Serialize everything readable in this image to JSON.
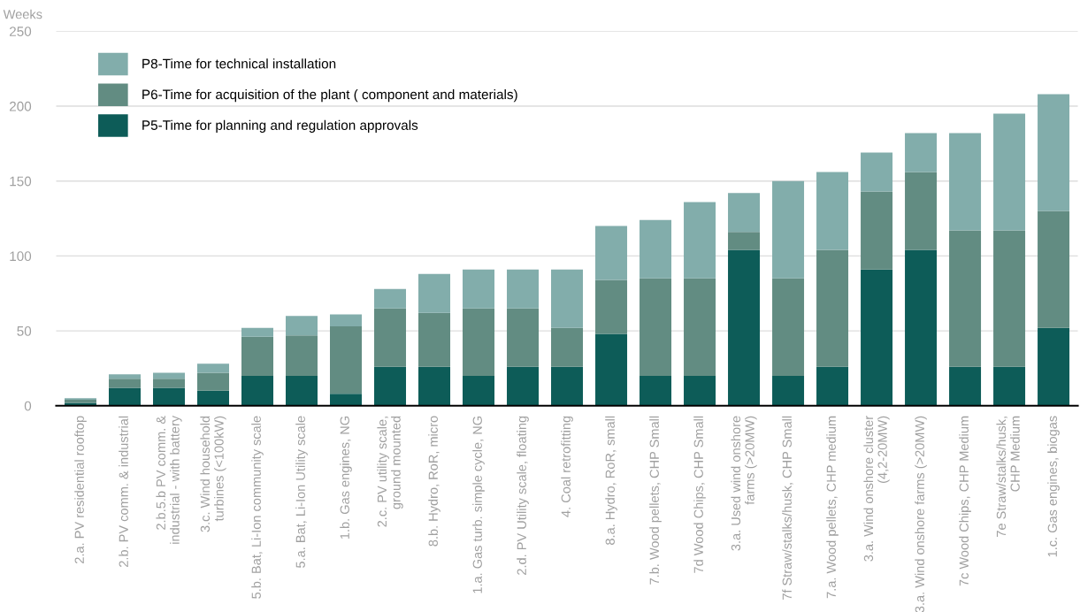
{
  "chart_data": {
    "type": "bar",
    "stacked": true,
    "ylabel": "Weeks",
    "categories": [
      "2.a. PV residential rooftop",
      "2.b. PV comm. & industrial",
      "2.b.5.b PV comm. &\nindustrial - with battery",
      "3.c. Wind household\nturbines (<100kW)",
      "5.b. Bat, Li-Ion community scale",
      "5.a. Bat, Li-Ion Utility scale",
      "1.b. Gas engines, NG",
      "2.c. PV utility scale,\nground mounted",
      "8.b. Hydro, RoR, micro",
      "1.a. Gas turb. simple cycle, NG",
      "2.d. PV Utility scale, floating",
      "4. Coal retrofitting",
      "8.a. Hydro, RoR, small",
      "7.b. Wood pellets, CHP Small",
      "7d Wood Chips, CHP Small",
      "3.a. Used wind onshore\nfarms (>20MW)",
      "7f Straw/stalks/husk, CHP Small",
      "7.a. Wood pellets, CHP medium",
      "3.a. Wind onshore cluster\n(4,2-20MW)",
      "3.a. Wind onshore farms (>20MW)",
      "7c Wood Chips, CHP Medium",
      "7e Straw/stalks/husk,\nCHP Medium",
      "1.c. Gas engines, biogas"
    ],
    "series": [
      {
        "name": "P5-Time for planning and regulation approvals",
        "color": "#0d5c58",
        "values": [
          2,
          12,
          12,
          10,
          20,
          20,
          8,
          26,
          26,
          20,
          26,
          26,
          48,
          20,
          20,
          104,
          20,
          26,
          91,
          104,
          26,
          26,
          52
        ]
      },
      {
        "name": "P6-Time for acquisition of the plant ( component and materials)",
        "color": "#628c82",
        "values": [
          2,
          6,
          6,
          12,
          26,
          27,
          45,
          39,
          36,
          45,
          39,
          26,
          36,
          65,
          65,
          12,
          65,
          78,
          52,
          52,
          91,
          91,
          78
        ]
      },
      {
        "name": "P8-Time for technical installation",
        "color": "#82adab",
        "values": [
          1,
          3,
          4,
          6,
          6,
          13,
          8,
          13,
          26,
          26,
          26,
          39,
          36,
          39,
          51,
          26,
          65,
          52,
          26,
          26,
          65,
          78,
          78
        ]
      }
    ],
    "ylim": [
      0,
      250
    ],
    "yticks": [
      0,
      50,
      100,
      150,
      200,
      250
    ],
    "grid": "y",
    "legend": "top left"
  }
}
